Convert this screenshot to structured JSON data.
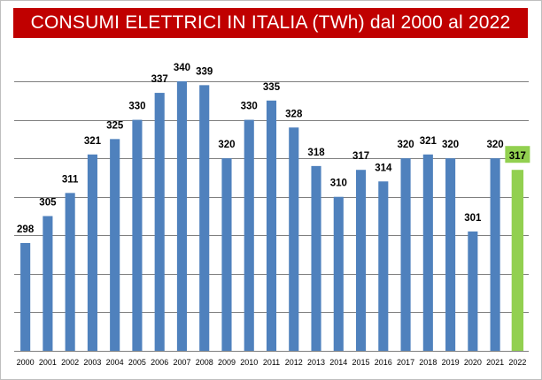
{
  "chart_data": {
    "type": "bar",
    "title": "CONSUMI ELETTRICI IN ITALIA (TWh) dal 2000 al 2022",
    "xlabel": "",
    "ylabel": "",
    "categories": [
      "2000",
      "2001",
      "2002",
      "2003",
      "2004",
      "2005",
      "2006",
      "2007",
      "2008",
      "2009",
      "2010",
      "2011",
      "2012",
      "2013",
      "2014",
      "2015",
      "2016",
      "2017",
      "2018",
      "2019",
      "2020",
      "2021",
      "2022"
    ],
    "values": [
      298,
      305,
      311,
      321,
      325,
      330,
      337,
      340,
      339,
      320,
      330,
      335,
      328,
      318,
      310,
      317,
      314,
      320,
      321,
      320,
      301,
      320,
      317
    ],
    "ylim": [
      270,
      340
    ],
    "gridlines": [
      270,
      280,
      290,
      300,
      310,
      320,
      330,
      340
    ],
    "grid": true,
    "legend": "none",
    "show_y_tick_labels": false,
    "colors": {
      "bar": "#4f81bd",
      "highlight_bar": "#92d050",
      "highlight_label_bg": "#92d050",
      "highlight_index": 22,
      "title_bg": "#c00000",
      "title_text": "#ffffff",
      "grid": "#7f7f7f"
    }
  }
}
